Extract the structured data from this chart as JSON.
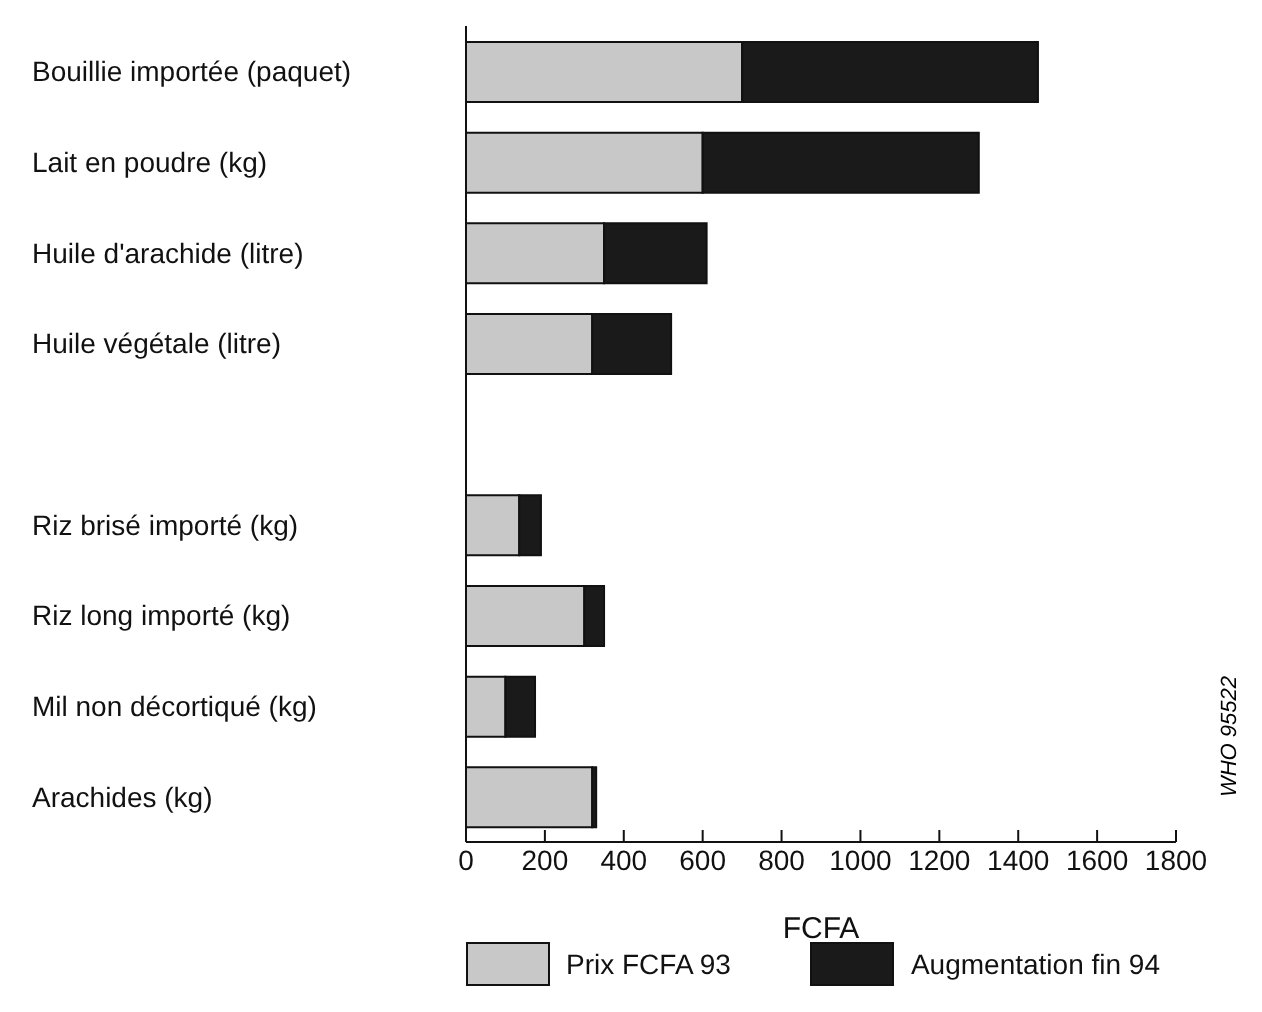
{
  "chart_data": {
    "type": "bar",
    "orientation": "horizontal",
    "stacked": true,
    "categories": [
      "Bouillie importée (paquet)",
      "Lait en poudre (kg)",
      "Huile d'arachide (litre)",
      "Huile végétale (litre)",
      null,
      "Riz brisé importé (kg)",
      "Riz long importé (kg)",
      "Mil non décortiqué (kg)",
      "Arachides (kg)"
    ],
    "series": [
      {
        "name": "Prix FCFA 93",
        "color": "#c8c8c8",
        "values": [
          700,
          600,
          350,
          320,
          null,
          135,
          300,
          100,
          320
        ]
      },
      {
        "name": "Augmentation fin 94",
        "color": "#1a1a1a",
        "values": [
          750,
          700,
          260,
          200,
          null,
          55,
          50,
          75,
          10
        ]
      }
    ],
    "xlabel": "FCFA",
    "xlim": [
      0,
      1800
    ],
    "xticks": [
      0,
      200,
      400,
      600,
      800,
      1000,
      1200,
      1400,
      1600,
      1800
    ],
    "legend": "bottom",
    "annotations": [
      "WHO 95522"
    ]
  }
}
